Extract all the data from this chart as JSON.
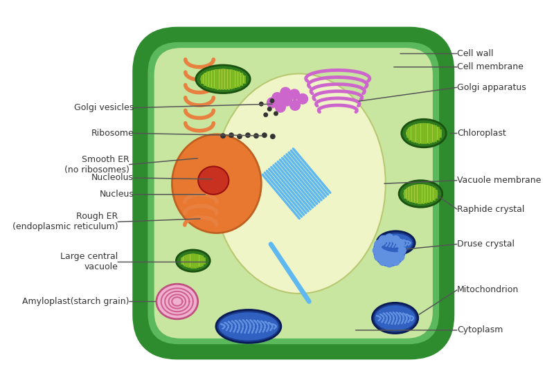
{
  "bg": "#ffffff",
  "cell_wall_color": "#2e8b2e",
  "cell_mem_color": "#5cb85c",
  "cytoplasm_color": "#c8e6a0",
  "vacuole_fill": "#f0f5c8",
  "vacuole_edge": "#b8c870",
  "nucleus_color": "#e87830",
  "nucleus_edge": "#c06020",
  "nucleolus_color": "#c83020",
  "smooth_er_color": "#e88040",
  "rough_er_color": "#e88040",
  "golgi_color": "#cc66cc",
  "vesicle_color": "#cc66cc",
  "chloroplast_dark": "#2e7a1e",
  "chloroplast_mid": "#5aaa30",
  "chloroplast_light": "#aacc44",
  "chloroplast_stripe": "#7ab820",
  "mito_dark": "#1a3a8a",
  "mito_mid": "#3060c0",
  "mito_light": "#6090e0",
  "mito_cristae": "#1a3a8a",
  "amylo_outer": "#f0b0d0",
  "amylo_spiral": "#d06090",
  "druse_outer": "#3868cc",
  "druse_mid": "#6090e0",
  "raphide_color": "#60b8f0",
  "ribosome_color": "#333333",
  "label_color": "#333333",
  "line_color": "#555555",
  "labels_left": [
    [
      "Golgi vesicles",
      148,
      148
    ],
    [
      "Ribosome",
      148,
      185
    ],
    [
      "Smooth ER\n(no ribosomes)",
      130,
      222
    ],
    [
      "Nucleolus",
      148,
      275
    ],
    [
      "Nucleus",
      148,
      298
    ],
    [
      "Rough ER\n(endoplasmic reticulum)",
      110,
      332
    ],
    [
      "Large central\nvacuole",
      110,
      400
    ],
    [
      "Amyloplast(starch grain)",
      90,
      443
    ]
  ],
  "labels_right": [
    [
      "Cell wall",
      672,
      68
    ],
    [
      "Cell membrane",
      672,
      88
    ],
    [
      "Golgi apparatus",
      672,
      118
    ],
    [
      "Chloroplast",
      672,
      185
    ],
    [
      "Vacuole membrane",
      672,
      258
    ],
    [
      "Raphide crystal",
      672,
      318
    ],
    [
      "Druse crystal",
      672,
      368
    ],
    [
      "Mitochondrion",
      672,
      420
    ],
    [
      "Cytoplasm",
      672,
      490
    ]
  ]
}
